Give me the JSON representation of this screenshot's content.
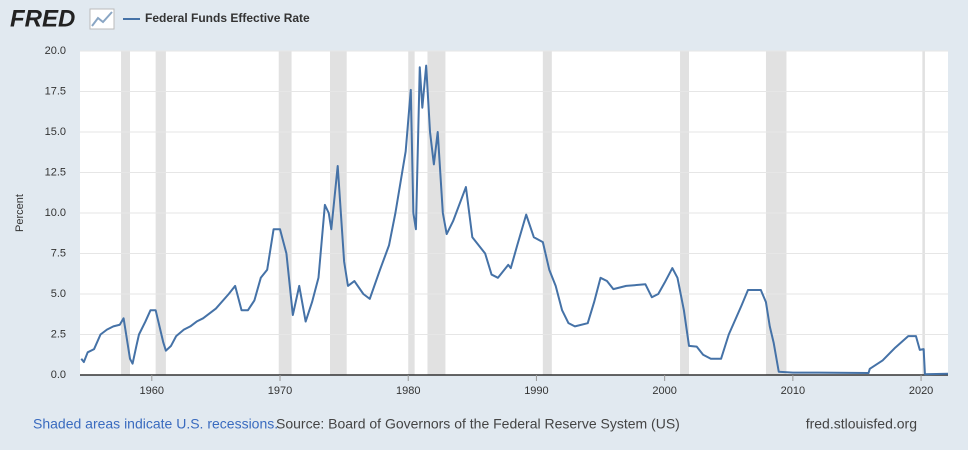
{
  "chart_data": {
    "type": "line",
    "logo": "FRED",
    "y_label": "Percent",
    "note": "Shaded areas indicate U.S. recessions.",
    "source": "Source: Board of Governors of the Federal Reserve System (US)",
    "site": "fred.stlouisfed.org",
    "xlim": [
      1954.4,
      2022.1
    ],
    "ylim": [
      0,
      20
    ],
    "xticks": [
      1960,
      1970,
      1980,
      1990,
      2000,
      2010,
      2020
    ],
    "yticks": [
      {
        "value": 0,
        "label": "0.0"
      },
      2.5,
      {
        "value": 5,
        "label": "5.0"
      },
      7.5,
      {
        "value": 10,
        "label": "10.0"
      },
      12.5,
      {
        "value": 15,
        "label": "15.0"
      },
      17.5,
      {
        "value": 20,
        "label": "20.0"
      }
    ],
    "grid": true,
    "recessions": [
      [
        1957.6,
        1958.3
      ],
      [
        1960.3,
        1961.1
      ],
      [
        1969.9,
        1970.9
      ],
      [
        1973.9,
        1975.2
      ],
      [
        1980.0,
        1980.5
      ],
      [
        1981.5,
        1982.9
      ],
      [
        1990.5,
        1991.2
      ],
      [
        2001.2,
        2001.9
      ],
      [
        2007.9,
        2009.5
      ],
      [
        2020.1,
        2020.3
      ]
    ],
    "x": [
      1954.5,
      1954.7,
      1955.0,
      1955.5,
      1956.0,
      1956.5,
      1957.0,
      1957.5,
      1957.8,
      1958.0,
      1958.3,
      1958.5,
      1958.8,
      1959.0,
      1959.5,
      1959.9,
      1960.3,
      1960.6,
      1960.9,
      1961.1,
      1961.5,
      1961.9,
      1962.5,
      1963.0,
      1963.5,
      1964.0,
      1965.0,
      1966.0,
      1966.5,
      1967.0,
      1967.5,
      1968.0,
      1968.5,
      1969.0,
      1969.5,
      1970.0,
      1970.5,
      1971.0,
      1971.5,
      1972.0,
      1972.5,
      1973.0,
      1973.5,
      1973.8,
      1974.0,
      1974.5,
      1975.0,
      1975.3,
      1975.8,
      1976.5,
      1977.0,
      1977.8,
      1978.5,
      1979.0,
      1979.8,
      1980.2,
      1980.4,
      1980.6,
      1980.9,
      1981.1,
      1981.4,
      1981.7,
      1982.0,
      1982.3,
      1982.7,
      1983.0,
      1983.5,
      1984.5,
      1985.0,
      1986.0,
      1986.5,
      1987.0,
      1987.8,
      1988.0,
      1988.5,
      1989.2,
      1989.8,
      1990.5,
      1991.0,
      1991.5,
      1992.0,
      1992.5,
      1993.0,
      1994.0,
      1994.5,
      1995.0,
      1995.5,
      1996.0,
      1997.0,
      1998.5,
      1999.0,
      1999.5,
      2000.0,
      2000.6,
      2001.0,
      2001.5,
      2001.9,
      2002.5,
      2003.0,
      2003.6,
      2004.4,
      2005.0,
      2006.0,
      2006.5,
      2007.5,
      2007.9,
      2008.2,
      2008.5,
      2008.9,
      2010.0,
      2012.0,
      2015.9,
      2016.0,
      2017.0,
      2018.0,
      2019.0,
      2019.6,
      2019.9,
      2020.2,
      2020.3,
      2022.1
    ],
    "series": [
      {
        "name": "Federal Funds Effective Rate",
        "color": "#4572a7",
        "values": [
          1.0,
          0.8,
          1.4,
          1.6,
          2.5,
          2.8,
          3.0,
          3.1,
          3.5,
          2.5,
          1.0,
          0.7,
          1.8,
          2.5,
          3.3,
          4.0,
          4.0,
          3.0,
          2.0,
          1.5,
          1.8,
          2.4,
          2.8,
          3.0,
          3.3,
          3.5,
          4.1,
          5.0,
          5.5,
          4.0,
          4.0,
          4.6,
          6.0,
          6.5,
          9.0,
          9.0,
          7.5,
          3.7,
          5.5,
          3.3,
          4.5,
          6.0,
          10.5,
          10.0,
          9.0,
          12.9,
          7.0,
          5.5,
          5.8,
          5.0,
          4.7,
          6.5,
          8.0,
          10.0,
          13.8,
          17.6,
          10.0,
          9.0,
          19.0,
          16.5,
          19.1,
          15.0,
          13.0,
          15.0,
          10.0,
          8.7,
          9.5,
          11.6,
          8.5,
          7.5,
          6.2,
          6.0,
          6.8,
          6.6,
          8.0,
          9.9,
          8.5,
          8.2,
          6.5,
          5.5,
          4.0,
          3.2,
          3.0,
          3.2,
          4.5,
          6.0,
          5.8,
          5.3,
          5.5,
          5.6,
          4.8,
          5.0,
          5.7,
          6.6,
          6.0,
          4.0,
          1.8,
          1.75,
          1.25,
          1.0,
          1.0,
          2.5,
          4.3,
          5.25,
          5.25,
          4.5,
          3.0,
          2.0,
          0.2,
          0.15,
          0.15,
          0.12,
          0.38,
          0.9,
          1.7,
          2.4,
          2.4,
          1.55,
          1.6,
          0.05,
          0.08
        ]
      }
    ]
  }
}
